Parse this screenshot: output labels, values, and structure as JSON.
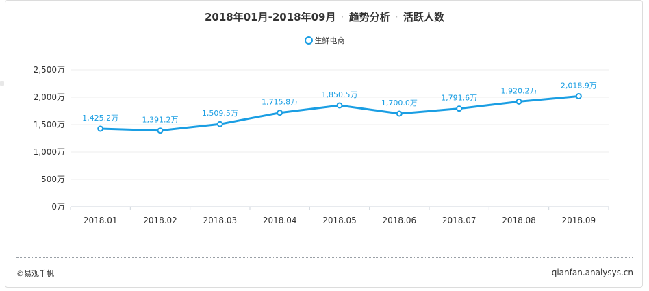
{
  "header": {
    "title_range": "2018年01月-2018年09月",
    "title_sep": "·",
    "title_part2": "趋势分析",
    "title_part3": "活跃人数"
  },
  "footer": {
    "copyright": "©易观千帆",
    "site": "qianfan.analysys.cn"
  },
  "colors": {
    "series": "#1a9ee3",
    "label": "#1a9ee3",
    "grid": "#ececec",
    "axis_text": "#333333"
  },
  "chart_data": {
    "type": "line",
    "categories": [
      "2018.01",
      "2018.02",
      "2018.03",
      "2018.04",
      "2018.05",
      "2018.06",
      "2018.07",
      "2018.08",
      "2018.09"
    ],
    "series": [
      {
        "name": "生鲜电商",
        "values": [
          1425.2,
          1391.2,
          1509.5,
          1715.8,
          1850.5,
          1700.0,
          1791.6,
          1920.2,
          2018.9
        ],
        "labels": [
          "1,425.2万",
          "1,391.2万",
          "1,509.5万",
          "1,715.8万",
          "1,850.5万",
          "1,700.0万",
          "1,791.6万",
          "1,920.2万",
          "2,018.9万"
        ]
      }
    ],
    "y_ticks": [
      0,
      500,
      1000,
      1500,
      2000,
      2500
    ],
    "y_tick_labels": [
      "0万",
      "500万",
      "1,000万",
      "1,500万",
      "2,000万",
      "2,500万"
    ],
    "ylim": [
      0,
      2500
    ],
    "grid": true,
    "legend_position": "top-center"
  }
}
